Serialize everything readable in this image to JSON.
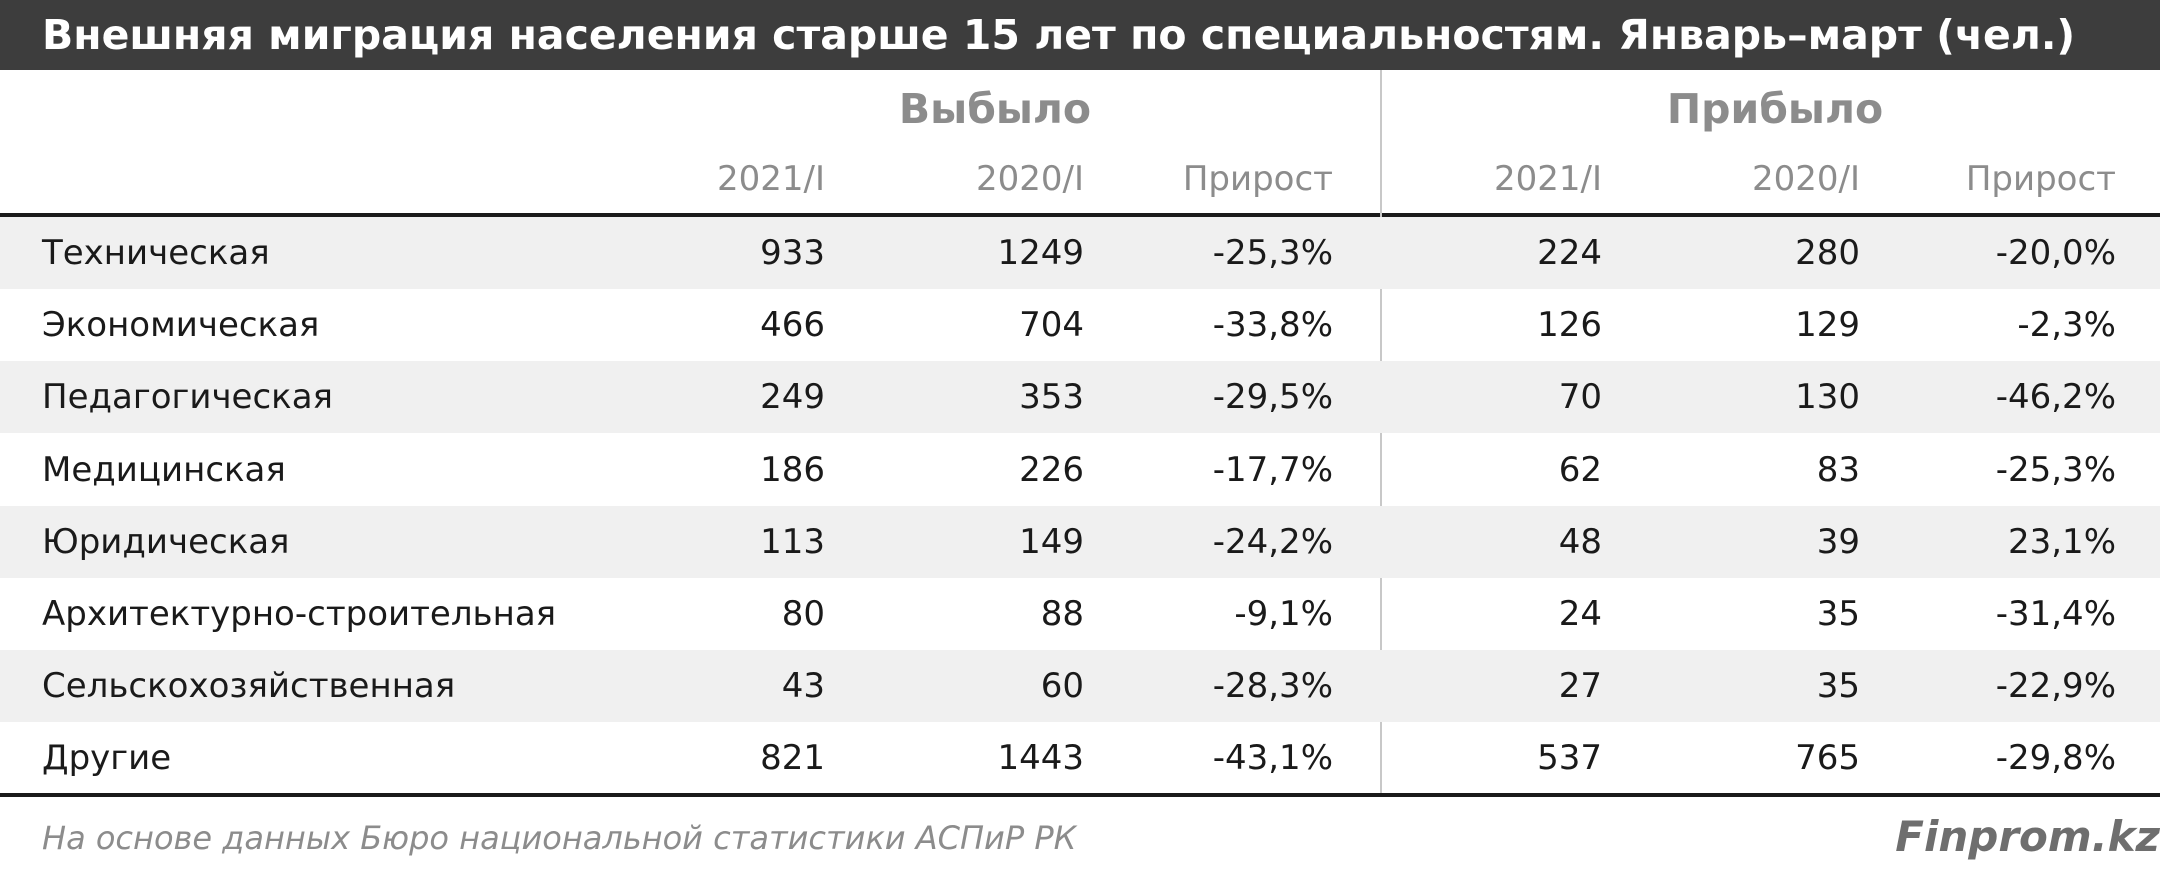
{
  "chart_data": {
    "type": "table",
    "title": "Внешняя миграция населения старше 15 лет по специальностям. Январь–март (чел.)",
    "groups": [
      "Выбыло",
      "Прибыло"
    ],
    "columns": [
      "2021/I",
      "2020/I",
      "Прирост",
      "2021/I",
      "2020/I",
      "Прирост"
    ],
    "rows": [
      {
        "name": "Техническая",
        "values": [
          "933",
          "1249",
          "-25,3%",
          "224",
          "280",
          "-20,0%"
        ]
      },
      {
        "name": "Экономическая",
        "values": [
          "466",
          "704",
          "-33,8%",
          "126",
          "129",
          "-2,3%"
        ]
      },
      {
        "name": "Педагогическая",
        "values": [
          "249",
          "353",
          "-29,5%",
          "70",
          "130",
          "-46,2%"
        ]
      },
      {
        "name": "Медицинская",
        "values": [
          "186",
          "226",
          "-17,7%",
          "62",
          "83",
          "-25,3%"
        ]
      },
      {
        "name": "Юридическая",
        "values": [
          "113",
          "149",
          "-24,2%",
          "48",
          "39",
          "23,1%"
        ]
      },
      {
        "name": "Архитектурно-строительная",
        "values": [
          "80",
          "88",
          "-9,1%",
          "24",
          "35",
          "-31,4%"
        ]
      },
      {
        "name": "Сельскохозяйственная",
        "values": [
          "43",
          "60",
          "-28,3%",
          "27",
          "35",
          "-22,9%"
        ]
      },
      {
        "name": "Другие",
        "values": [
          "821",
          "1443",
          "-43,1%",
          "537",
          "765",
          "-29,8%"
        ]
      }
    ],
    "source": "На основе данных Бюро национальной статистики АСПиР РК",
    "brand": "Finprom.kz"
  },
  "colors": {
    "title_bar": "#3d3d3d",
    "header_text": "#8c8c8c",
    "row_shade": "#f0f0f0",
    "text": "#1a1a1a"
  }
}
